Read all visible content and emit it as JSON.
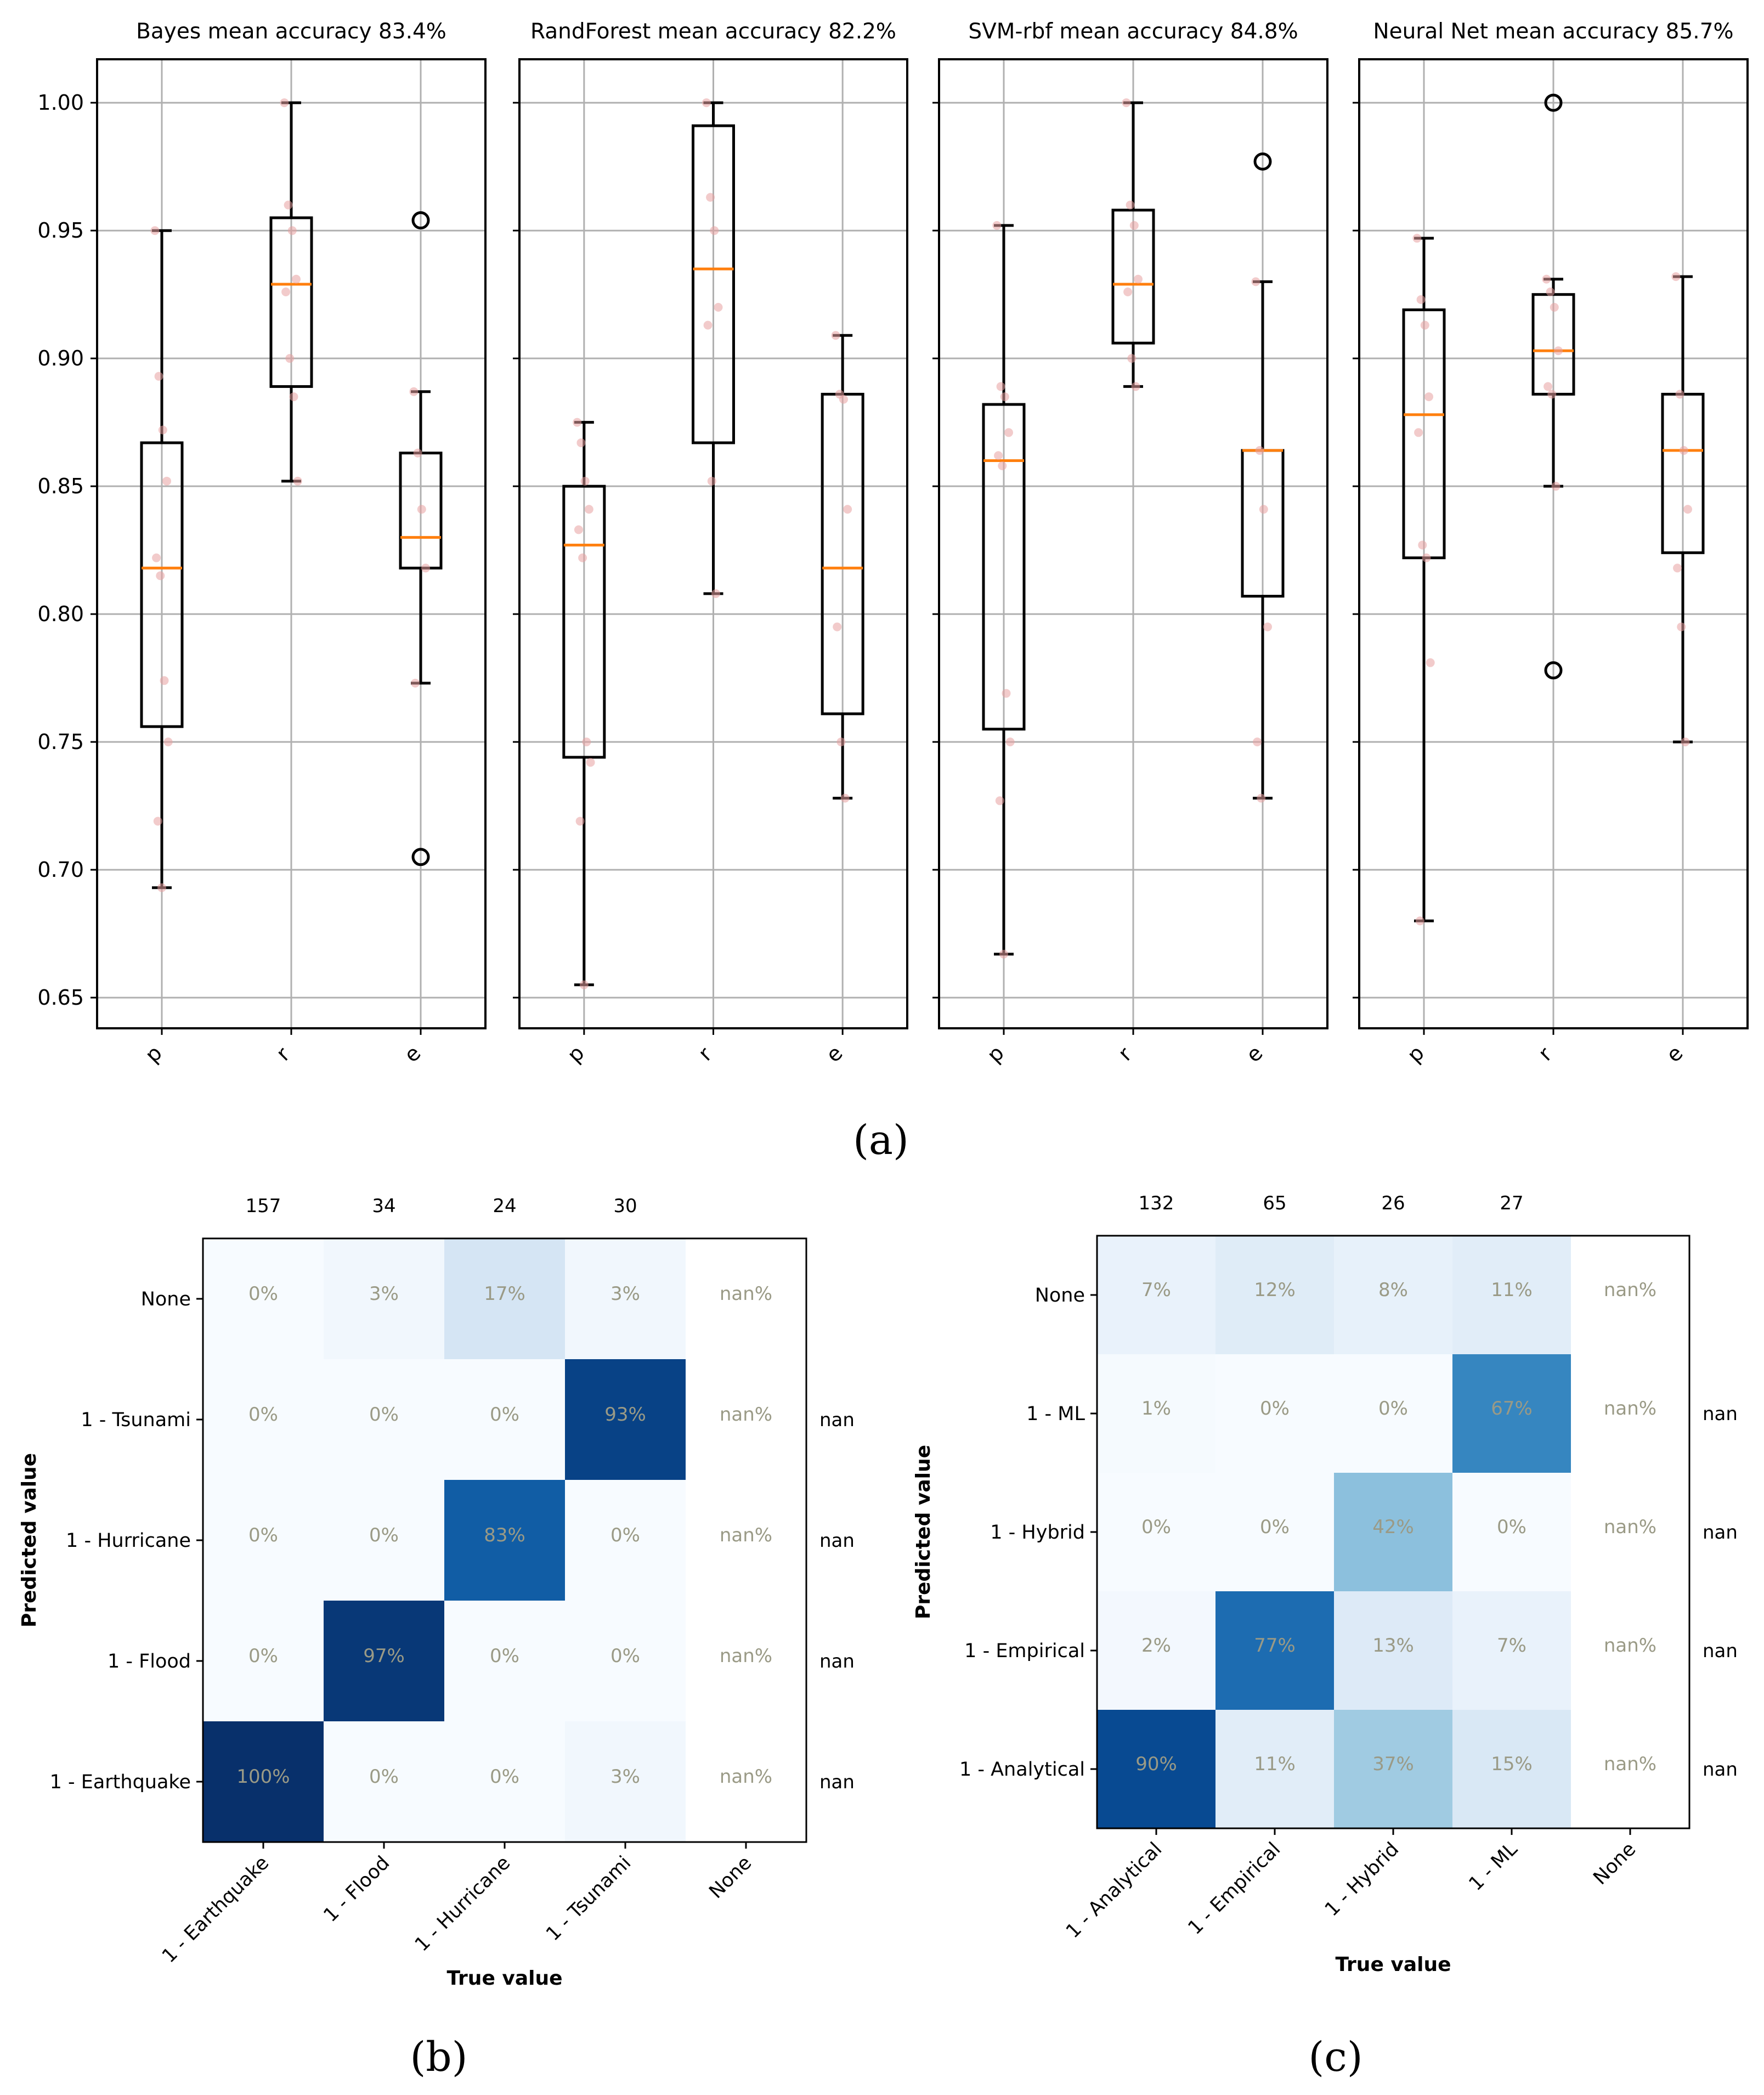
{
  "panel_labels": {
    "a": "(a)",
    "b": "(b)",
    "c": "(c)"
  },
  "chart_data": [
    {
      "type": "boxplot",
      "figure_panel": "a",
      "shared_y": true,
      "ylim": [
        0.638,
        1.017
      ],
      "yticks": [
        0.65,
        0.7,
        0.75,
        0.8,
        0.85,
        0.9,
        0.95,
        1.0
      ],
      "ytick_labels": [
        "0.65",
        "0.70",
        "0.75",
        "0.80",
        "0.85",
        "0.90",
        "0.95",
        "1.00"
      ],
      "grid": true,
      "colors": {
        "box": "#000000",
        "median": "#ff7f0e",
        "points": "#e8a0a0",
        "grid": "#b0b0b0"
      },
      "subplots": [
        {
          "title": "Bayes mean accuracy 83.4%",
          "categories": [
            "p",
            "r",
            "e"
          ],
          "boxes": [
            {
              "whislo": 0.693,
              "q1": 0.756,
              "med": 0.818,
              "q3": 0.867,
              "whishi": 0.95,
              "fliers": [],
              "points": [
                0.95,
                0.893,
                0.872,
                0.852,
                0.822,
                0.815,
                0.774,
                0.75,
                0.719,
                0.693
              ]
            },
            {
              "whislo": 0.852,
              "q1": 0.889,
              "med": 0.929,
              "q3": 0.955,
              "whishi": 1.0,
              "fliers": [],
              "points": [
                1.0,
                0.96,
                0.95,
                0.931,
                0.926,
                0.9,
                0.885,
                0.852
              ]
            },
            {
              "whislo": 0.773,
              "q1": 0.818,
              "med": 0.83,
              "q3": 0.863,
              "whishi": 0.887,
              "fliers": [
                0.954,
                0.705
              ],
              "points": [
                0.887,
                0.863,
                0.841,
                0.818,
                0.773
              ]
            }
          ]
        },
        {
          "title": "RandForest mean accuracy 82.2%",
          "categories": [
            "p",
            "r",
            "e"
          ],
          "boxes": [
            {
              "whislo": 0.655,
              "q1": 0.744,
              "med": 0.827,
              "q3": 0.85,
              "whishi": 0.875,
              "fliers": [],
              "points": [
                0.875,
                0.867,
                0.852,
                0.841,
                0.833,
                0.822,
                0.75,
                0.742,
                0.719,
                0.655
              ]
            },
            {
              "whislo": 0.808,
              "q1": 0.867,
              "med": 0.935,
              "q3": 0.991,
              "whishi": 1.0,
              "fliers": [],
              "points": [
                1.0,
                0.963,
                0.95,
                0.92,
                0.913,
                0.852,
                0.808
              ]
            },
            {
              "whislo": 0.728,
              "q1": 0.761,
              "med": 0.818,
              "q3": 0.886,
              "whishi": 0.909,
              "fliers": [],
              "points": [
                0.909,
                0.886,
                0.884,
                0.841,
                0.795,
                0.75,
                0.728
              ]
            }
          ]
        },
        {
          "title": "SVM-rbf mean accuracy 84.8%",
          "categories": [
            "p",
            "r",
            "e"
          ],
          "boxes": [
            {
              "whislo": 0.667,
              "q1": 0.755,
              "med": 0.86,
              "q3": 0.882,
              "whishi": 0.952,
              "fliers": [],
              "points": [
                0.952,
                0.889,
                0.885,
                0.871,
                0.862,
                0.858,
                0.769,
                0.75,
                0.727,
                0.667
              ]
            },
            {
              "whislo": 0.889,
              "q1": 0.906,
              "med": 0.929,
              "q3": 0.958,
              "whishi": 1.0,
              "fliers": [],
              "points": [
                1.0,
                0.96,
                0.952,
                0.931,
                0.926,
                0.9,
                0.889
              ]
            },
            {
              "whislo": 0.728,
              "q1": 0.807,
              "med": 0.864,
              "q3": 0.864,
              "whishi": 0.93,
              "fliers": [
                0.977
              ],
              "points": [
                0.93,
                0.864,
                0.841,
                0.795,
                0.75,
                0.728
              ]
            }
          ]
        },
        {
          "title": "Neural Net mean accuracy 85.7%",
          "categories": [
            "p",
            "r",
            "e"
          ],
          "boxes": [
            {
              "whislo": 0.68,
              "q1": 0.822,
              "med": 0.878,
              "q3": 0.919,
              "whishi": 0.947,
              "fliers": [],
              "points": [
                0.947,
                0.923,
                0.913,
                0.885,
                0.871,
                0.827,
                0.822,
                0.781,
                0.68
              ]
            },
            {
              "whislo": 0.85,
              "q1": 0.886,
              "med": 0.903,
              "q3": 0.925,
              "whishi": 0.931,
              "fliers": [
                1.0,
                0.778
              ],
              "points": [
                0.931,
                0.926,
                0.92,
                0.903,
                0.889,
                0.886,
                0.85
              ]
            },
            {
              "whislo": 0.75,
              "q1": 0.824,
              "med": 0.864,
              "q3": 0.886,
              "whishi": 0.932,
              "fliers": [],
              "points": [
                0.932,
                0.886,
                0.864,
                0.841,
                0.818,
                0.795,
                0.75
              ]
            }
          ]
        }
      ]
    },
    {
      "type": "heatmap",
      "figure_panel": "b",
      "title": "",
      "xlabel": "True value",
      "ylabel": "Predicted value",
      "x_categories": [
        "1 - Earthquake",
        "1 - Flood",
        "1 - Hurricane",
        "1 - Tsunami",
        "None"
      ],
      "y_categories": [
        "None",
        "1 - Tsunami",
        "1 - Hurricane",
        "1 - Flood",
        "1 - Earthquake"
      ],
      "column_totals": [
        "157",
        "34",
        "24",
        "30"
      ],
      "row_side_labels": [
        "",
        "nan",
        "nan",
        "nan",
        "nan"
      ],
      "cells": [
        [
          "0%",
          "3%",
          "17%",
          "3%",
          "nan%"
        ],
        [
          "0%",
          "0%",
          "0%",
          "93%",
          "nan%"
        ],
        [
          "0%",
          "0%",
          "83%",
          "0%",
          "nan%"
        ],
        [
          "0%",
          "97%",
          "0%",
          "0%",
          "nan%"
        ],
        [
          "100%",
          "0%",
          "0%",
          "3%",
          "nan%"
        ]
      ],
      "values": [
        [
          0,
          3,
          17,
          3,
          null
        ],
        [
          0,
          0,
          0,
          93,
          null
        ],
        [
          0,
          0,
          83,
          0,
          null
        ],
        [
          0,
          97,
          0,
          0,
          null
        ],
        [
          100,
          0,
          0,
          3,
          null
        ]
      ],
      "colormap": "Blues",
      "cell_text_color": "#9a9a86"
    },
    {
      "type": "heatmap",
      "figure_panel": "c",
      "title": "",
      "xlabel": "True value",
      "ylabel": "Predicted value",
      "x_categories": [
        "1 - Analytical",
        "1 - Empirical",
        "1 - Hybrid",
        "1 - ML",
        "None"
      ],
      "y_categories": [
        "None",
        "1 - ML",
        "1 - Hybrid",
        "1 - Empirical",
        "1 - Analytical"
      ],
      "column_totals": [
        "132",
        "65",
        "26",
        "27"
      ],
      "row_side_labels": [
        "",
        "nan",
        "nan",
        "nan",
        "nan"
      ],
      "cells": [
        [
          "7%",
          "12%",
          "8%",
          "11%",
          "nan%"
        ],
        [
          "1%",
          "0%",
          "0%",
          "67%",
          "nan%"
        ],
        [
          "0%",
          "0%",
          "42%",
          "0%",
          "nan%"
        ],
        [
          "2%",
          "77%",
          "13%",
          "7%",
          "nan%"
        ],
        [
          "90%",
          "11%",
          "37%",
          "15%",
          "nan%"
        ]
      ],
      "values": [
        [
          7,
          12,
          8,
          11,
          null
        ],
        [
          1,
          0,
          0,
          67,
          null
        ],
        [
          0,
          0,
          42,
          0,
          null
        ],
        [
          2,
          77,
          13,
          7,
          null
        ],
        [
          90,
          11,
          37,
          15,
          null
        ]
      ],
      "colormap": "Blues",
      "cell_text_color": "#9a9a86"
    }
  ]
}
